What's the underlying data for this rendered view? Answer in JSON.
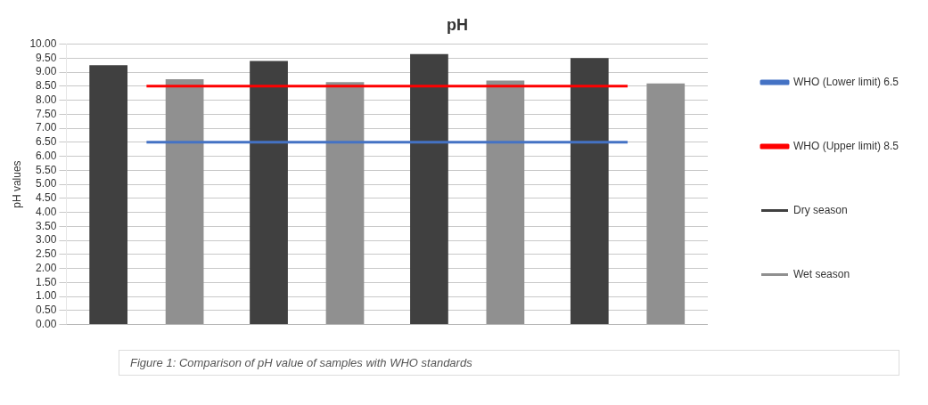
{
  "chart_data": {
    "type": "bar",
    "title": "pH",
    "ylabel": "pH values",
    "categories": [
      null,
      null,
      null,
      null
    ],
    "series": [
      {
        "name": "Dry season",
        "color": "#404040",
        "values": [
          9.25,
          9.4,
          9.65,
          9.5
        ]
      },
      {
        "name": "Wet season",
        "color": "#909090",
        "values": [
          8.75,
          8.65,
          8.7,
          8.6
        ]
      },
      {
        "name": "WHO (Lower limit) 6.5",
        "type": "line",
        "color": "#4472c4",
        "values": [
          6.5,
          6.5,
          6.5,
          6.5
        ]
      },
      {
        "name": "WHO (Upper limit) 8.5",
        "type": "line",
        "color": "#ff0000",
        "values": [
          8.5,
          8.5,
          8.5,
          8.5
        ]
      }
    ],
    "ylim": [
      0,
      10
    ],
    "yticks": [
      {
        "value": 0,
        "label": "0.00"
      },
      {
        "value": 0.5,
        "label": "0.50"
      },
      {
        "value": 1,
        "label": "1.00"
      },
      {
        "value": 1.5,
        "label": "1.50"
      },
      {
        "value": 2,
        "label": "2.00"
      },
      {
        "value": 2.5,
        "label": "2.50"
      },
      {
        "value": 3,
        "label": "3.00"
      },
      {
        "value": 3.5,
        "label": "3.50"
      },
      {
        "value": 4,
        "label": "4.00"
      },
      {
        "value": 4.5,
        "label": "4.50"
      },
      {
        "value": 5,
        "label": "5.00"
      },
      {
        "value": 5.5,
        "label": "5.50"
      },
      {
        "value": 6,
        "label": "6.00"
      },
      {
        "value": 6.5,
        "label": "6.50"
      },
      {
        "value": 7,
        "label": "7.00"
      },
      {
        "value": 7.5,
        "label": "7.50"
      },
      {
        "value": 8,
        "label": "8.00"
      },
      {
        "value": 8.5,
        "label": "8.50"
      },
      {
        "value": 9,
        "label": "9.00"
      },
      {
        "value": 9.5,
        "label": "9.50"
      },
      {
        "value": 10,
        "label": "10.00"
      }
    ],
    "grid": "y",
    "legend": "right",
    "marker": "none",
    "annotations": [
      "Figure 1: Comparison of pH value of samples with WHO standards"
    ]
  }
}
